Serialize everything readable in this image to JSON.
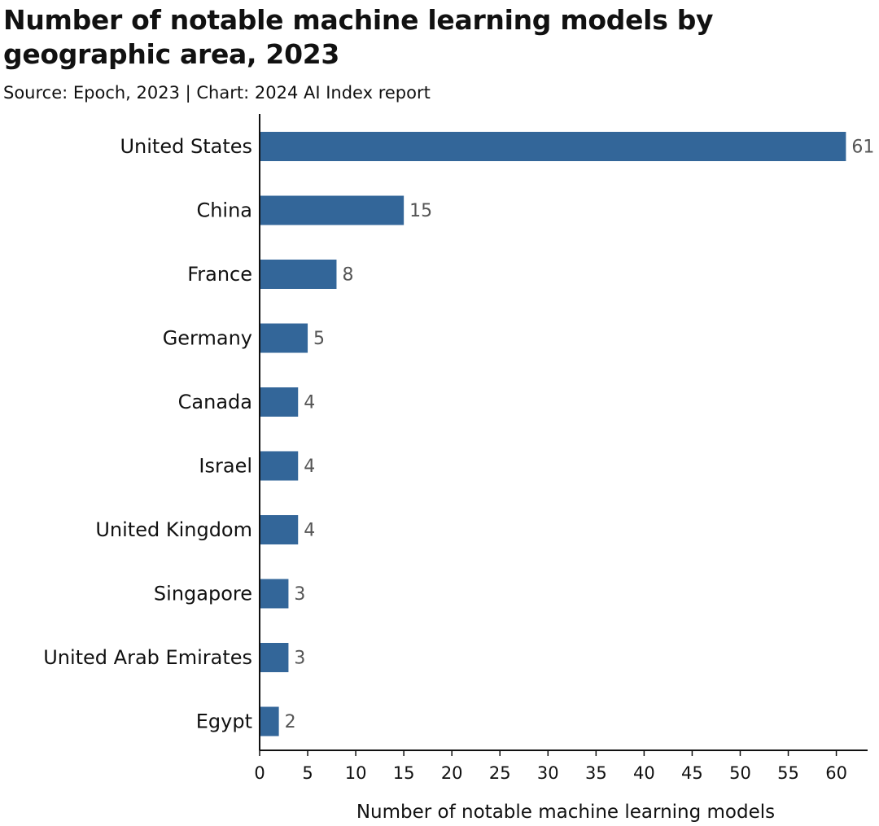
{
  "chart_data": {
    "type": "bar",
    "orientation": "horizontal",
    "title": "Number of notable machine learning models by geographic area, 2023",
    "subtitle": "Source: Epoch, 2023 | Chart: 2024 AI Index report",
    "categories": [
      "United States",
      "China",
      "France",
      "Germany",
      "Canada",
      "Israel",
      "United Kingdom",
      "Singapore",
      "United Arab Emirates",
      "Egypt"
    ],
    "values": [
      61,
      15,
      8,
      5,
      4,
      4,
      4,
      3,
      3,
      2
    ],
    "xlabel": "Number of notable machine learning models",
    "ylabel": "",
    "xlim": [
      0,
      63
    ],
    "xticks": [
      0,
      5,
      10,
      15,
      20,
      25,
      30,
      35,
      40,
      45,
      50,
      55,
      60
    ],
    "grid": false,
    "legend": "none",
    "bar_color": "#336699",
    "axis_color": "#111111",
    "value_label_color": "#555555"
  }
}
